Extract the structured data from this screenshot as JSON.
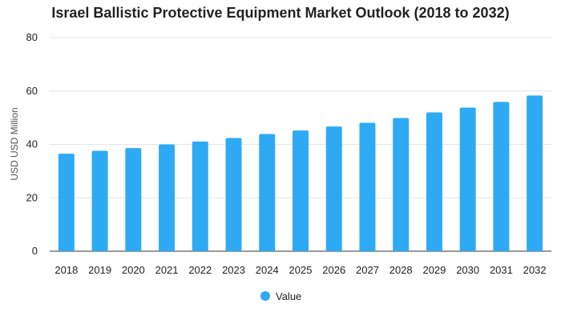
{
  "chart_data": {
    "type": "bar",
    "title": "Israel Ballistic Protective Equipment Market Outlook (2018 to 2032)",
    "xlabel": "",
    "ylabel": "USD USD Million",
    "categories": [
      "2018",
      "2019",
      "2020",
      "2021",
      "2022",
      "2023",
      "2024",
      "2025",
      "2026",
      "2027",
      "2028",
      "2029",
      "2030",
      "2031",
      "2032"
    ],
    "series": [
      {
        "name": "Value",
        "color": "#2eaaf5",
        "values": [
          36.5,
          37.6,
          38.6,
          40.0,
          41.1,
          42.4,
          43.9,
          45.2,
          46.7,
          48.1,
          49.9,
          52.0,
          53.8,
          55.9,
          58.3
        ]
      }
    ],
    "ylim": [
      0,
      80
    ],
    "yticks": [
      0,
      20,
      40,
      60,
      80
    ],
    "grid": true,
    "legend_position": "bottom-center"
  }
}
